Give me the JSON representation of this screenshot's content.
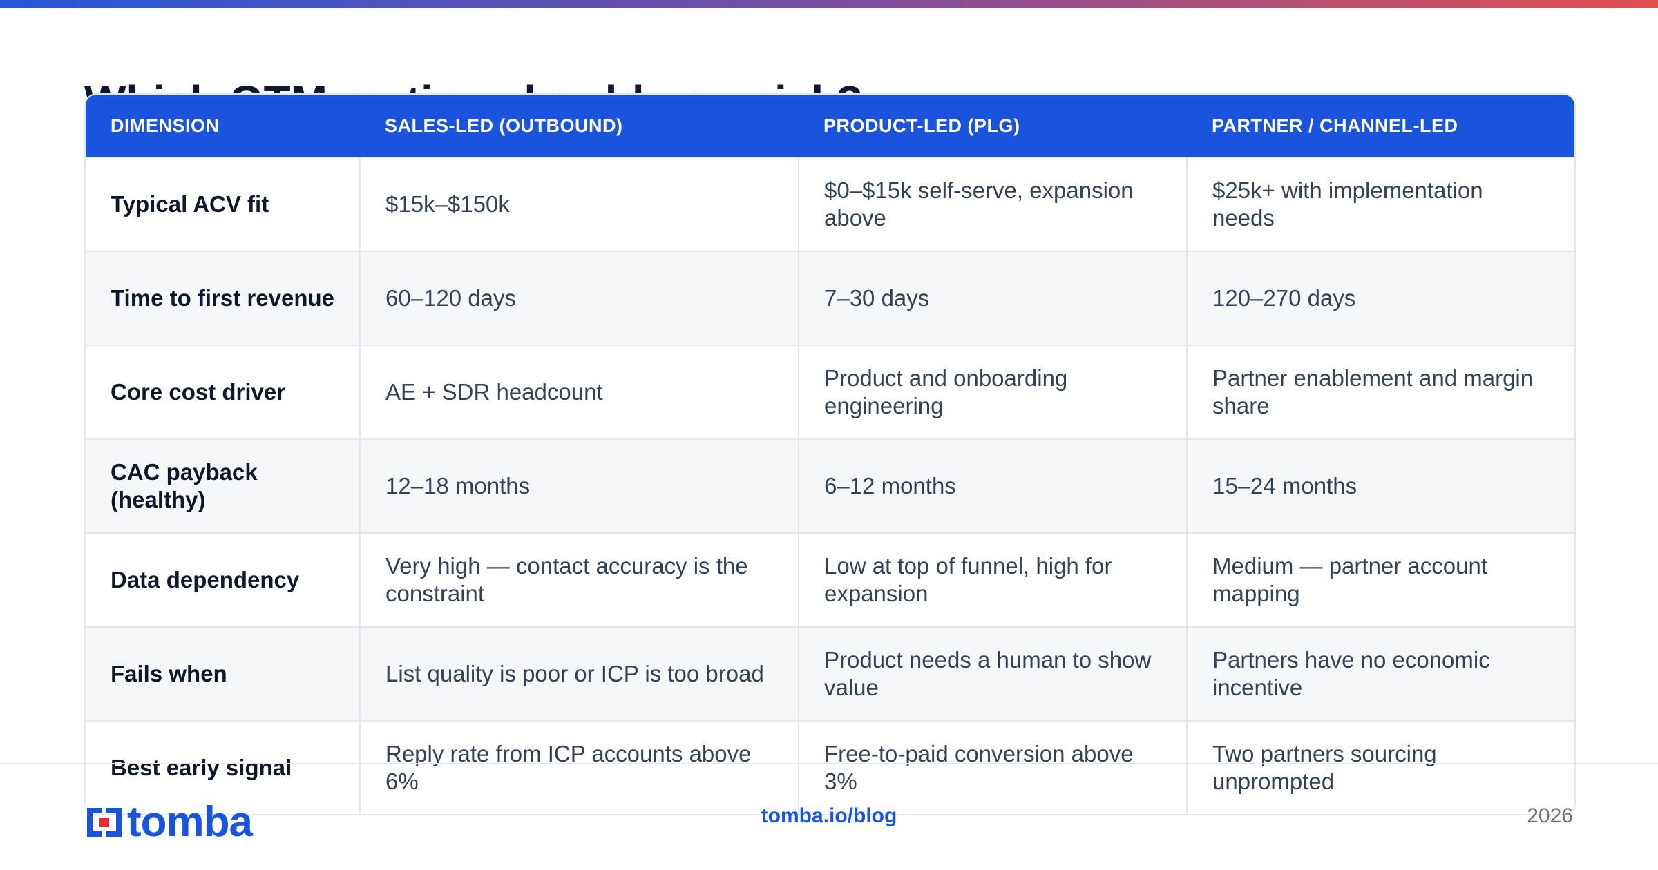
{
  "header": {
    "title": "Which GTM motion should you pick?"
  },
  "table": {
    "columns": [
      "DIMENSION",
      "SALES-LED (OUTBOUND)",
      "PRODUCT-LED (PLG)",
      "PARTNER / CHANNEL-LED"
    ],
    "rows": [
      [
        "Typical ACV fit",
        "$15k–$150k",
        "$0–$15k self-serve, expansion above",
        "$25k+ with implementation needs"
      ],
      [
        "Time to first revenue",
        "60–120 days",
        "7–30 days",
        "120–270 days"
      ],
      [
        "Core cost driver",
        "AE + SDR headcount",
        "Product and onboarding engineering",
        "Partner enablement and margin share"
      ],
      [
        "CAC payback (healthy)",
        "12–18 months",
        "6–12 months",
        "15–24 months"
      ],
      [
        "Data dependency",
        "Very high — contact accuracy is the constraint",
        "Low at top of funnel, high for expansion",
        "Medium — partner account mapping"
      ],
      [
        "Fails when",
        "List quality is poor or ICP is too broad",
        "Product needs a human to show value",
        "Partners have no economic incentive"
      ],
      [
        "Best early signal",
        "Reply rate from ICP accounts above 6%",
        "Free-to-paid conversion above 3%",
        "Two partners sourcing unprompted"
      ]
    ]
  },
  "footer": {
    "brand": "tomba",
    "url": "tomba.io/blog",
    "year": "2026"
  }
}
